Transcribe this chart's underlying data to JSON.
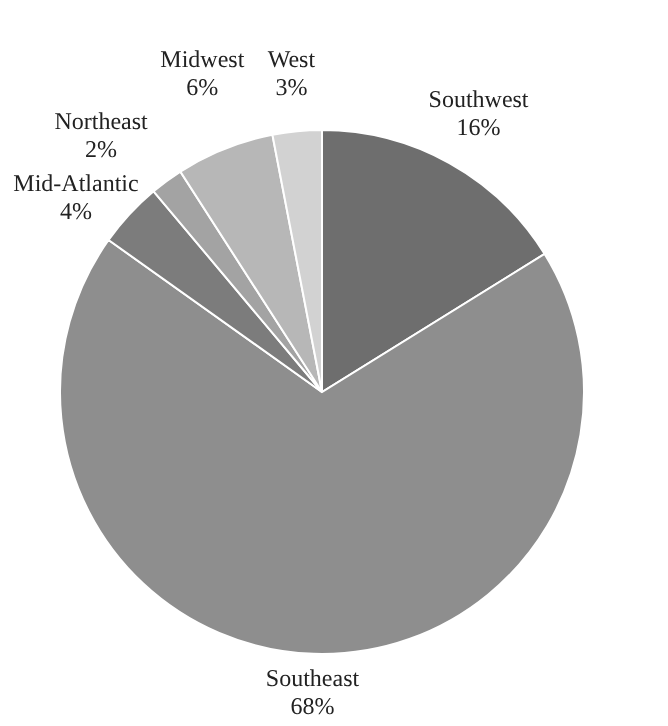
{
  "chart_data": {
    "type": "pie",
    "categories": [
      "Southwest",
      "Southeast",
      "Mid-Atlantic",
      "Northeast",
      "Midwest",
      "West"
    ],
    "values": [
      16,
      68,
      4,
      2,
      6,
      3
    ],
    "value_labels": [
      "16%",
      "68%",
      "4%",
      "2%",
      "6%",
      "3%"
    ],
    "colors": [
      "#6e6e6e",
      "#8e8e8e",
      "#7c7c7c",
      "#a3a3a3",
      "#b7b7b7",
      "#d2d2d2"
    ]
  }
}
